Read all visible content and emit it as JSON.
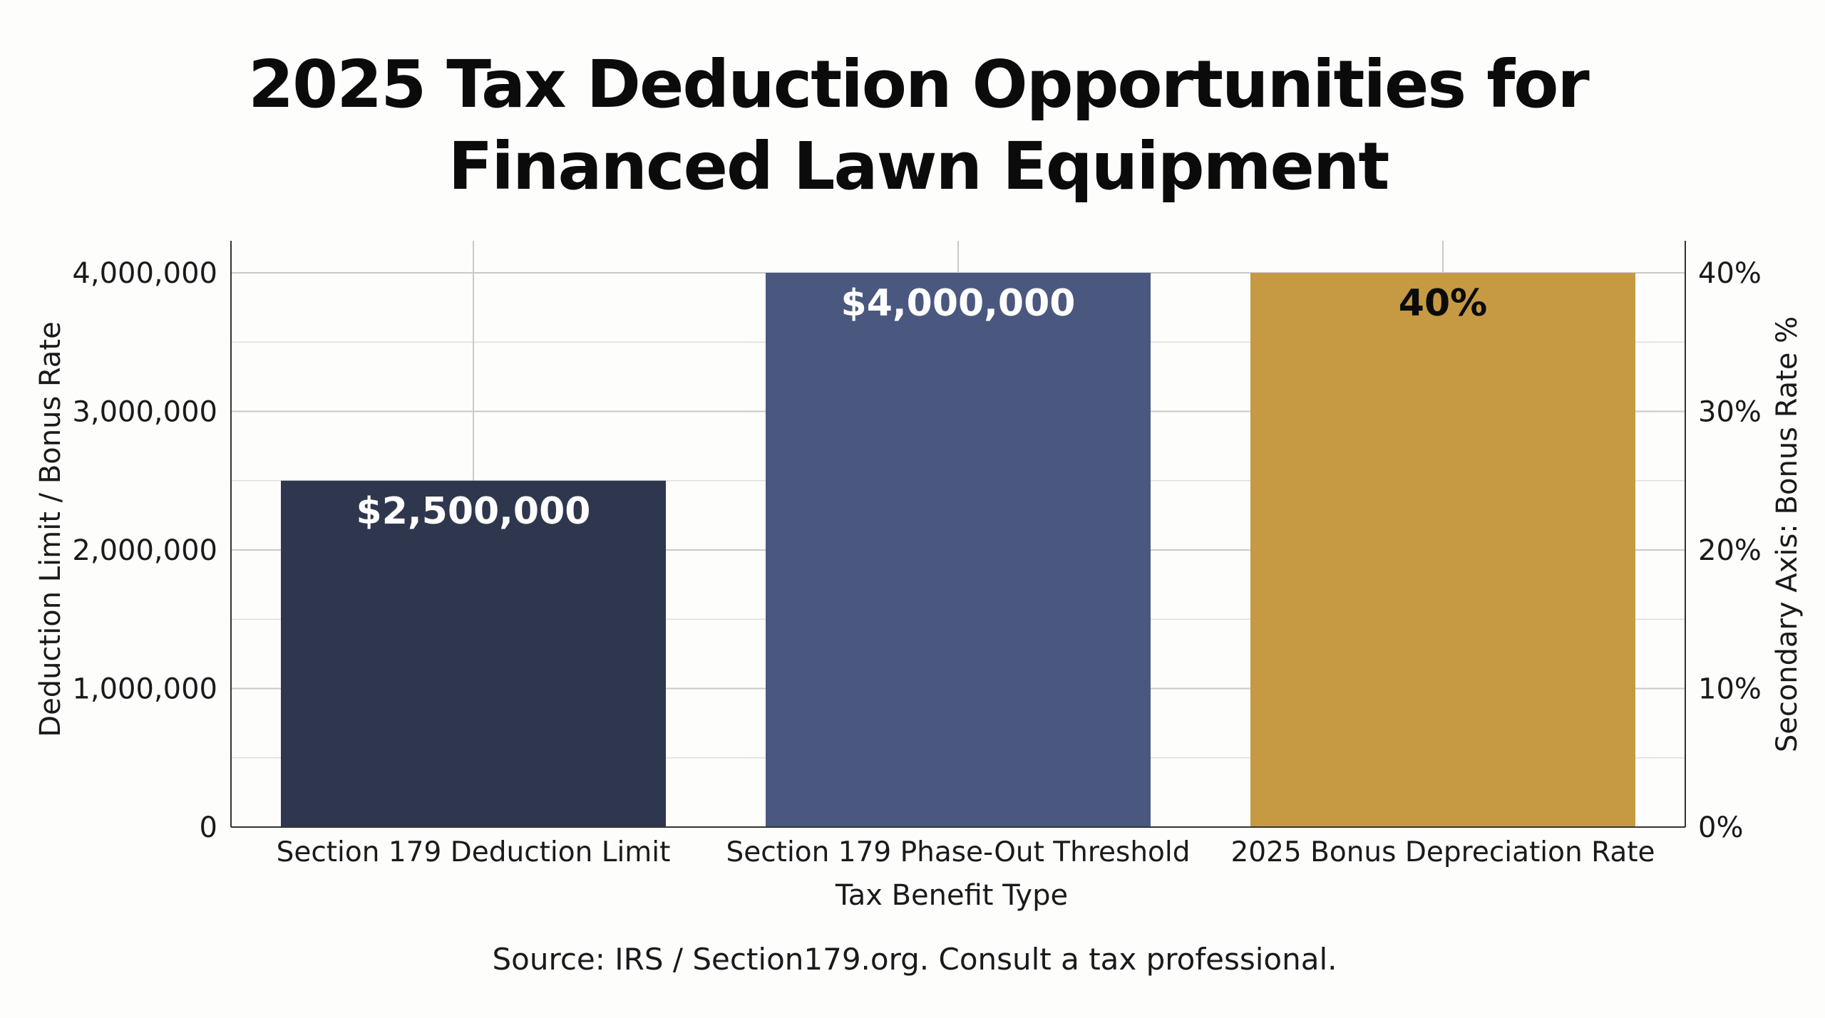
{
  "chart_data": {
    "type": "bar",
    "title_lines": [
      "2025 Tax Deduction Opportunities for",
      "Financed Lawn Equipment"
    ],
    "categories": [
      "Section 179 Deduction Limit",
      "Section 179 Phase-Out Threshold",
      "2025 Bonus Depreciation Rate"
    ],
    "series": [
      {
        "values": [
          2500000,
          4000000,
          40
        ],
        "axis": [
          "primary",
          "primary",
          "secondary"
        ],
        "colors": [
          "#2f374e",
          "#4a5880",
          "#c59a42"
        ],
        "data_labels": [
          "$2,500,000",
          "$4,000,000",
          "40%"
        ],
        "data_label_colors": [
          "#ffffff",
          "#ffffff",
          "#0b0b0b"
        ]
      }
    ],
    "xlabel": "Tax Benefit Type",
    "ylabel": "Deduction Limit / Bonus Rate",
    "y2label": "Secondary Axis: Bonus Rate %",
    "ylim": [
      0,
      4000000
    ],
    "y2lim": [
      0,
      40
    ],
    "yticks": [
      0,
      1000000,
      2000000,
      3000000,
      4000000
    ],
    "ytick_labels": [
      "0",
      "1,000,000",
      "2,000,000",
      "3,000,000",
      "4,000,000"
    ],
    "y2ticks": [
      0,
      10,
      20,
      30,
      40
    ],
    "y2tick_labels": [
      "0%",
      "10%",
      "20%",
      "30%",
      "40%"
    ],
    "grid": true,
    "source": "Source: IRS / Section179.org. Consult a tax professional."
  }
}
